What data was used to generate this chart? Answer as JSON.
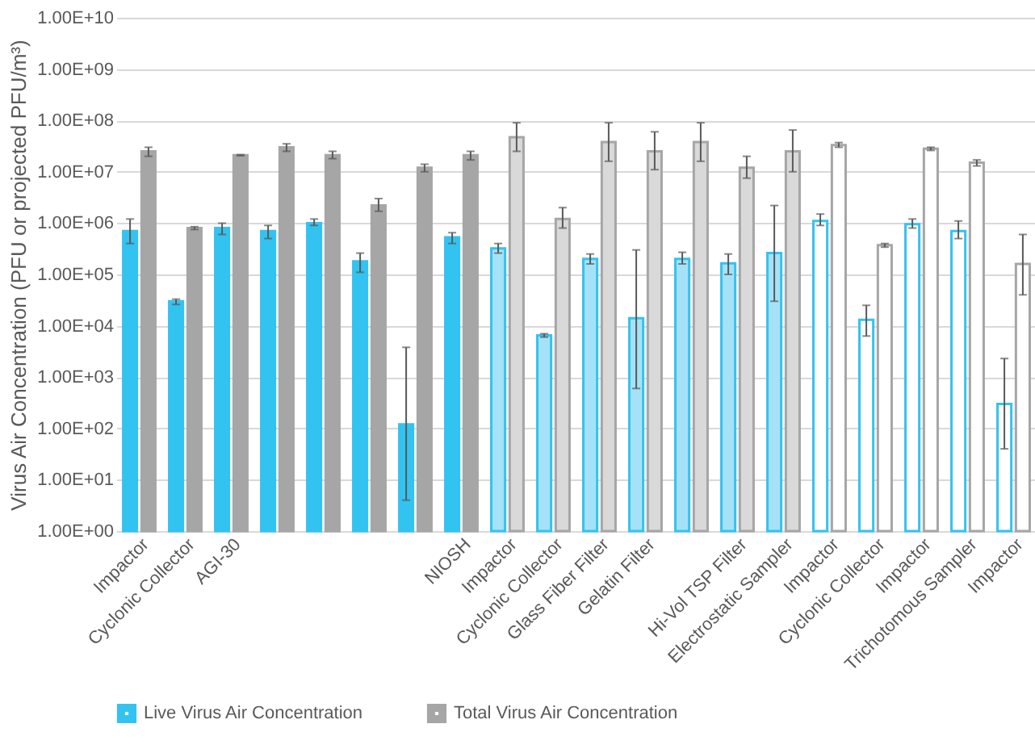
{
  "chart_data": {
    "type": "bar",
    "ylabel": "Virus Air Concentration (PFU or projected PFU/m³)",
    "log": "y",
    "ylim": [
      1,
      10000000000
    ],
    "yticks": [
      {
        "value": 1,
        "label": "1.00E+00"
      },
      {
        "value": 10,
        "label": "1.00E+01"
      },
      {
        "value": 100,
        "label": "1.00E+02"
      },
      {
        "value": 1000,
        "label": "1.00E+03"
      },
      {
        "value": 10000,
        "label": "1.00E+04"
      },
      {
        "value": 100000,
        "label": "1.00E+05"
      },
      {
        "value": 1000000,
        "label": "1.00E+06"
      },
      {
        "value": 10000000,
        "label": "1.00E+07"
      },
      {
        "value": 100000000,
        "label": "1.00E+08"
      },
      {
        "value": 1000000000,
        "label": "1.00E+09"
      },
      {
        "value": 10000000000,
        "label": "1.00E+10"
      }
    ],
    "grid": "y",
    "legend": "bottom",
    "categories": [
      "Impactor",
      "Cyclonic Collector",
      "AGI-30",
      null,
      null,
      null,
      null,
      "NIOSH",
      "Impactor",
      "Cyclonic Collector",
      "Glass Fiber Filter",
      "Gelatin Filter",
      null,
      "Hi-Vol TSP Filter",
      "Electrostatic Sampler",
      "Impactor",
      "Cyclonic Collector",
      "Impactor",
      "Trichotomous Sampler",
      "Impactor"
    ],
    "series": [
      {
        "name": "Live Virus Air Concentration",
        "color": "#33c3f0",
        "colors": [
          "#33c3f0",
          "#33c3f0",
          "#33c3f0",
          "#33c3f0",
          "#33c3f0",
          "#33c3f0",
          "#33c3f0",
          "#33c3f0",
          "#a6e2f7",
          "#a6e2f7",
          "#a6e2f7",
          "#a6e2f7",
          "#a6e2f7",
          "#a6e2f7",
          "#a6e2f7",
          "#ffffff",
          "#ffffff",
          "#ffffff",
          "#ffffff",
          "#ffffff"
        ],
        "values": [
          700000,
          30000,
          800000,
          700000,
          1000000,
          180000,
          120,
          530000,
          320000,
          6500,
          200000,
          14000,
          200000,
          165000,
          260000,
          1100000,
          13000,
          950000,
          700000,
          300
        ],
        "errors": [
          [
            400000,
            1200000
          ],
          [
            26000,
            33000
          ],
          [
            600000,
            1000000
          ],
          [
            500000,
            900000
          ],
          [
            900000,
            1200000
          ],
          [
            110000,
            260000
          ],
          [
            4,
            3800
          ],
          [
            400000,
            650000
          ],
          [
            260000,
            400000
          ],
          [
            6000,
            7000
          ],
          [
            160000,
            250000
          ],
          [
            600,
            300000
          ],
          [
            160000,
            270000
          ],
          [
            100000,
            250000
          ],
          [
            30000,
            2200000
          ],
          [
            900000,
            1500000
          ],
          [
            6300,
            25000
          ],
          [
            800000,
            1200000
          ],
          [
            500000,
            1100000
          ],
          [
            40,
            2300
          ]
        ]
      },
      {
        "name": "Total Virus Air Concentration",
        "color": "#a6a6a6",
        "colors": [
          "#a6a6a6",
          "#a6a6a6",
          "#a6a6a6",
          "#a6a6a6",
          "#a6a6a6",
          "#a6a6a6",
          "#a6a6a6",
          "#a6a6a6",
          "#d9d9d9",
          "#d9d9d9",
          "#d9d9d9",
          "#d9d9d9",
          "#d9d9d9",
          "#d9d9d9",
          "#d9d9d9",
          "#ffffff",
          "#ffffff",
          "#ffffff",
          "#ffffff",
          "#ffffff"
        ],
        "values": [
          25000000,
          800000,
          21000000,
          30000000,
          21000000,
          2200000,
          12000000,
          21000000,
          47000000,
          1200000,
          38000000,
          25000000,
          38000000,
          12000000,
          25000000,
          33000000,
          370000,
          28000000,
          15000000,
          160000
        ],
        "errors": [
          [
            20000000,
            30000000
          ],
          [
            750000,
            850000
          ],
          [
            20500000,
            21500000
          ],
          [
            25000000,
            35000000
          ],
          [
            18000000,
            25000000
          ],
          [
            1700000,
            3000000
          ],
          [
            10000000,
            14000000
          ],
          [
            17000000,
            25000000
          ],
          [
            25000000,
            90000000
          ],
          [
            800000,
            2000000
          ],
          [
            16000000,
            90000000
          ],
          [
            11000000,
            60000000
          ],
          [
            16000000,
            90000000
          ],
          [
            7500000,
            20000000
          ],
          [
            10000000,
            65000000
          ],
          [
            30000000,
            37000000
          ],
          [
            340000,
            400000
          ],
          [
            26000000,
            30000000
          ],
          [
            13000000,
            17000000
          ],
          [
            40000,
            600000
          ]
        ]
      }
    ]
  }
}
